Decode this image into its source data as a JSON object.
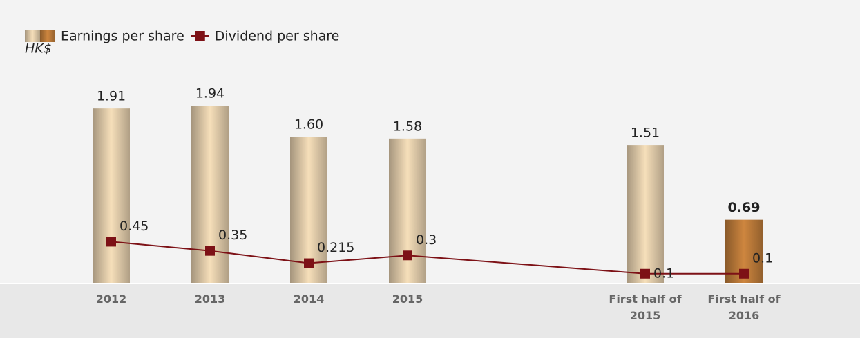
{
  "chart_data": {
    "type": "bar_line",
    "y_label": "HK$",
    "categories": [
      "2012",
      "2013",
      "2014",
      "2015",
      "First half of 2015",
      "First half of 2016"
    ],
    "ylim": [
      0,
      2.1
    ],
    "legend": "top-left",
    "series": [
      {
        "name": "Earnings per share",
        "type": "bar",
        "colors": [
          "#dcc7a6",
          "#dcc7a6",
          "#dcc7a6",
          "#dcc7a6",
          "#dcc7a6",
          "#b87838"
        ],
        "values": [
          1.91,
          1.94,
          1.6,
          1.58,
          1.51,
          0.69
        ],
        "value_labels": [
          "1.91",
          "1.94",
          "1.60",
          "1.58",
          "1.51",
          "0.69"
        ]
      },
      {
        "name": "Dividend per share",
        "type": "line",
        "color": "#7d1116",
        "values": [
          0.45,
          0.35,
          0.215,
          0.3,
          0.1,
          0.1
        ]
      }
    ]
  }
}
